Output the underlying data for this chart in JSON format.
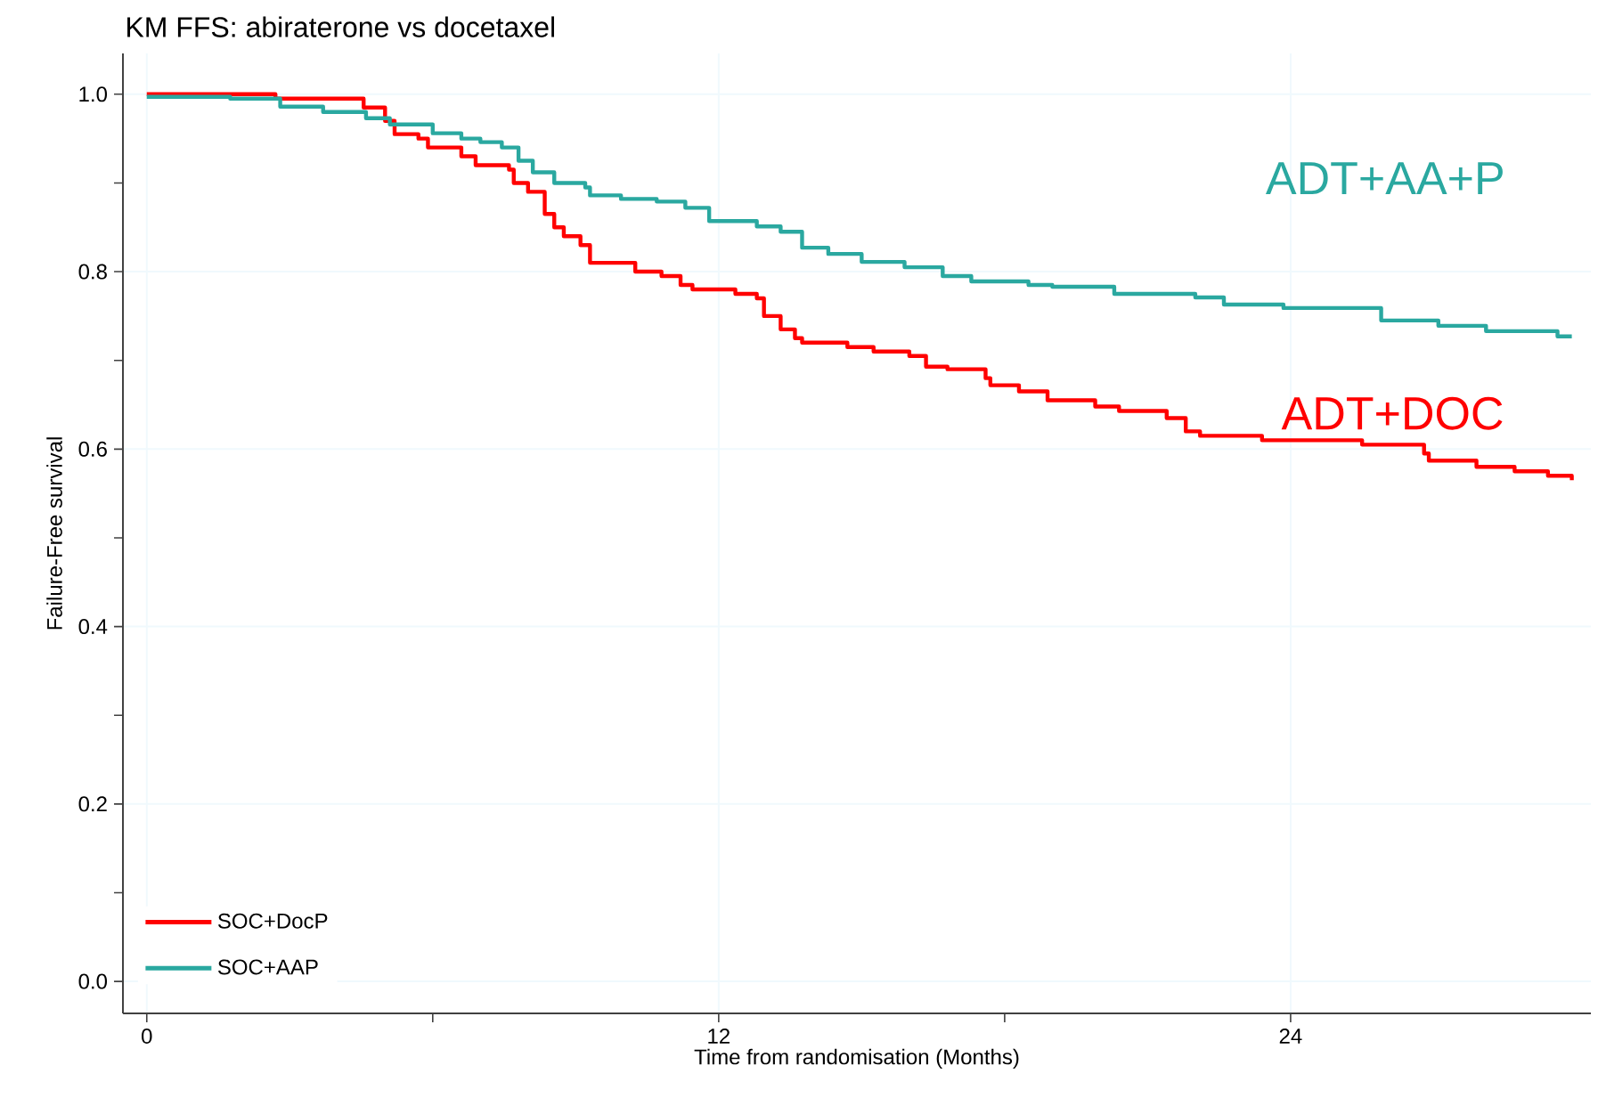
{
  "chart_data": {
    "type": "step",
    "title": "KM FFS: abiraterone vs docetaxel",
    "xlabel": "Time from randomisation (Months)",
    "ylabel": "Failure-Free survival",
    "xlim": [
      -0.5,
      30.3
    ],
    "ylim": [
      -0.036,
      1.046
    ],
    "xticks": [
      0,
      {
        "value": 6,
        "label": null
      },
      12,
      {
        "value": 18,
        "label": null
      },
      24
    ],
    "yticks": [
      {
        "value": 0,
        "label": "0.0"
      },
      {
        "value": 0.1,
        "label": null
      },
      {
        "value": 0.2,
        "label": "0.2"
      },
      {
        "value": 0.3,
        "label": null
      },
      {
        "value": 0.4,
        "label": "0.4"
      },
      {
        "value": 0.5,
        "label": null
      },
      {
        "value": 0.6,
        "label": "0.6"
      },
      {
        "value": 0.7,
        "label": null
      },
      {
        "value": 0.8,
        "label": "0.8"
      },
      {
        "value": 0.9,
        "label": null
      },
      {
        "value": 1,
        "label": "1.0"
      }
    ],
    "grid": true,
    "legend": "bottom left",
    "marker": "none",
    "line_style": "solid",
    "series": [
      {
        "name": "SOC+DocP",
        "color": "#ff0000",
        "x": [
          0,
          2.7,
          4.55,
          5.0,
          5.2,
          5.7,
          5.9,
          6.6,
          6.9,
          7.6,
          7.7,
          8.0,
          8.35,
          8.55,
          8.75,
          9.1,
          9.3,
          10.25,
          10.8,
          11.2,
          11.45,
          12.35,
          12.8,
          12.95,
          13.3,
          13.6,
          13.75,
          14.7,
          15.25,
          16.0,
          16.35,
          16.8,
          17.6,
          17.7,
          18.3,
          18.9,
          19.9,
          20.4,
          21.4,
          21.8,
          22.1,
          23.4,
          25.5,
          26.8,
          26.9,
          27.9,
          28.7,
          29.4,
          29.9
        ],
        "values": [
          1.0,
          0.995,
          0.985,
          0.97,
          0.955,
          0.95,
          0.94,
          0.93,
          0.92,
          0.915,
          0.9,
          0.89,
          0.865,
          0.85,
          0.84,
          0.83,
          0.81,
          0.8,
          0.795,
          0.785,
          0.78,
          0.775,
          0.77,
          0.75,
          0.735,
          0.725,
          0.72,
          0.715,
          0.71,
          0.705,
          0.693,
          0.69,
          0.68,
          0.672,
          0.665,
          0.655,
          0.648,
          0.643,
          0.635,
          0.62,
          0.615,
          0.61,
          0.605,
          0.595,
          0.587,
          0.58,
          0.575,
          0.57,
          0.565
        ]
      },
      {
        "name": "SOC+AAP",
        "color": "#2aa8a0",
        "x": [
          0,
          1.75,
          2.8,
          3.7,
          4.6,
          5.1,
          6.0,
          6.6,
          7.0,
          7.45,
          7.8,
          8.1,
          8.55,
          9.2,
          9.3,
          9.95,
          10.7,
          11.3,
          11.8,
          12.8,
          13.3,
          13.75,
          14.3,
          15.0,
          15.9,
          16.7,
          17.3,
          18.5,
          19.0,
          20.3,
          22.0,
          22.6,
          23.85,
          25.9,
          27.1,
          28.1,
          29.6,
          29.9
        ],
        "values": [
          0.997,
          0.995,
          0.986,
          0.98,
          0.973,
          0.966,
          0.956,
          0.95,
          0.946,
          0.94,
          0.925,
          0.912,
          0.9,
          0.895,
          0.886,
          0.882,
          0.879,
          0.872,
          0.857,
          0.851,
          0.845,
          0.827,
          0.82,
          0.811,
          0.805,
          0.795,
          0.789,
          0.785,
          0.783,
          0.775,
          0.771,
          0.763,
          0.759,
          0.745,
          0.739,
          0.733,
          0.727,
          0.727
        ]
      }
    ],
    "annotations": [
      "ADT+DOC",
      "ADT+AA+P"
    ]
  }
}
